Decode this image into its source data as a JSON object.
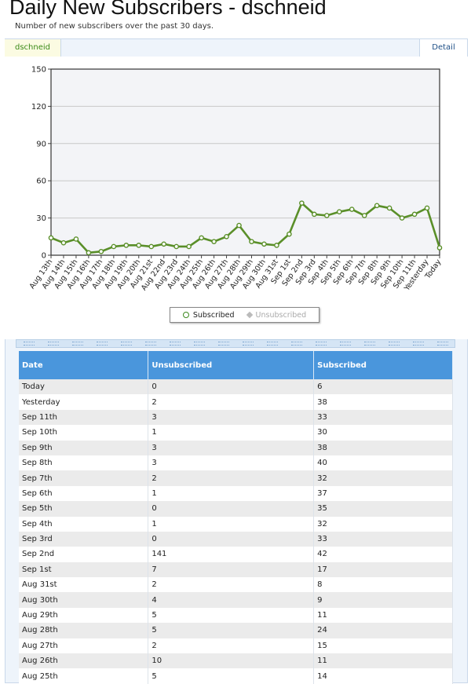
{
  "page": {
    "title": "Daily New Subscribers - dschneid",
    "subtitle": "Number of new subscribers over the past 30 days."
  },
  "tabs": {
    "active_label": "dschneid",
    "detail_label": "Detail"
  },
  "legend": {
    "subscribed": "Subscribed",
    "unsubscribed": "Unsubscribed"
  },
  "colors": {
    "line": "#5a8f29",
    "header": "#4a96dc",
    "plot_bg": "#f3f4f7"
  },
  "chart_data": {
    "type": "line",
    "categories": [
      "Aug 13th",
      "Aug 14th",
      "Aug 15th",
      "Aug 16th",
      "Aug 17th",
      "Aug 18th",
      "Aug 19th",
      "Aug 20th",
      "Aug 21st",
      "Aug 22nd",
      "Aug 23rd",
      "Aug 24th",
      "Aug 25th",
      "Aug 26th",
      "Aug 27th",
      "Aug 28th",
      "Aug 29th",
      "Aug 30th",
      "Aug 31st",
      "Sep 1st",
      "Sep 2nd",
      "Sep 3rd",
      "Sep 4th",
      "Sep 5th",
      "Sep 6th",
      "Sep 7th",
      "Sep 8th",
      "Sep 9th",
      "Sep 10th",
      "Sep 11th",
      "Yesterday",
      "Today"
    ],
    "series": [
      {
        "name": "Subscribed",
        "values": [
          14,
          10,
          13,
          2,
          3,
          7,
          8,
          8,
          7,
          9,
          7,
          7,
          14,
          11,
          15,
          24,
          11,
          9,
          8,
          17,
          42,
          33,
          32,
          35,
          37,
          32,
          40,
          38,
          30,
          33,
          38,
          6
        ]
      }
    ],
    "yticks": [
      0,
      30,
      60,
      90,
      120,
      150
    ],
    "ylim": [
      0,
      150
    ],
    "grid": true,
    "legend_position": "bottom"
  },
  "table": {
    "headers": [
      "Date",
      "Unsubscribed",
      "Subscribed"
    ],
    "rows": [
      [
        "Today",
        "0",
        "6"
      ],
      [
        "Yesterday",
        "2",
        "38"
      ],
      [
        "Sep 11th",
        "3",
        "33"
      ],
      [
        "Sep 10th",
        "1",
        "30"
      ],
      [
        "Sep 9th",
        "3",
        "38"
      ],
      [
        "Sep 8th",
        "3",
        "40"
      ],
      [
        "Sep 7th",
        "2",
        "32"
      ],
      [
        "Sep 6th",
        "1",
        "37"
      ],
      [
        "Sep 5th",
        "0",
        "35"
      ],
      [
        "Sep 4th",
        "1",
        "32"
      ],
      [
        "Sep 3rd",
        "0",
        "33"
      ],
      [
        "Sep 2nd",
        "141",
        "42"
      ],
      [
        "Sep 1st",
        "7",
        "17"
      ],
      [
        "Aug 31st",
        "2",
        "8"
      ],
      [
        "Aug 30th",
        "4",
        "9"
      ],
      [
        "Aug 29th",
        "5",
        "11"
      ],
      [
        "Aug 28th",
        "5",
        "24"
      ],
      [
        "Aug 27th",
        "2",
        "15"
      ],
      [
        "Aug 26th",
        "10",
        "11"
      ],
      [
        "Aug 25th",
        "5",
        "14"
      ]
    ]
  }
}
